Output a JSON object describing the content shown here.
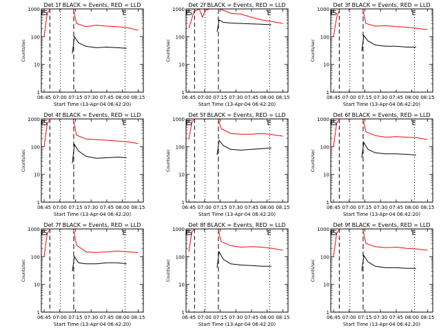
{
  "chart_data": [
    {
      "type": "line",
      "title": "Det 1f BLACK = Events, RED = LLD",
      "xlabel": "Start Time (13-Apr-04 06:42:20)",
      "ylabel": "Counts/sec",
      "y_scale": "log",
      "ylim": [
        1,
        1000
      ],
      "yticks": [
        "1",
        "10",
        "100",
        "1000"
      ],
      "xticks": [
        "06:45",
        "07:00",
        "07:15",
        "07:30",
        "07:45",
        "08:00",
        "08:15"
      ],
      "markers": [
        "E",
        "S",
        "E"
      ],
      "series": [
        {
          "name": "Events",
          "color": "#000000",
          "x": [
            "07:12",
            "07:14",
            "07:18",
            "07:25",
            "07:35",
            "07:45",
            "07:55",
            "08:04"
          ],
          "y": [
            25,
            100,
            60,
            45,
            40,
            42,
            40,
            38
          ]
        },
        {
          "name": "LLD",
          "color": "#ff0000",
          "x": [
            "06:45",
            "06:48",
            "06:51",
            "07:10",
            "07:13",
            "07:16",
            "07:25",
            "07:35",
            "07:45",
            "07:55",
            "08:05",
            "08:15"
          ],
          "y": [
            100,
            700,
            1000,
            1000,
            1000,
            300,
            230,
            260,
            240,
            230,
            210,
            170
          ]
        }
      ]
    },
    {
      "type": "line",
      "title": "Det 2f BLACK = Events, RED = LLD",
      "xlabel": "Start Time (13-Apr-04 06:42:20)",
      "ylabel": "Counts/sec",
      "y_scale": "log",
      "ylim": [
        1,
        1000
      ],
      "yticks": [
        "1",
        "10",
        "100",
        "1000"
      ],
      "xticks": [
        "06:45",
        "07:00",
        "07:15",
        "07:30",
        "07:45",
        "08:00",
        "08:15"
      ],
      "markers": [
        "E",
        "S",
        "E"
      ],
      "series": [
        {
          "name": "Events",
          "color": "#000000",
          "x": [
            "07:12",
            "07:14",
            "07:18",
            "07:25",
            "07:35",
            "07:45",
            "07:55",
            "08:04"
          ],
          "y": [
            150,
            400,
            330,
            310,
            300,
            290,
            280,
            270
          ]
        },
        {
          "name": "LLD",
          "color": "#ff0000",
          "x": [
            "06:45",
            "06:50",
            "06:55",
            "06:58",
            "07:01",
            "07:05",
            "07:10",
            "07:15",
            "07:25",
            "07:35",
            "07:45",
            "07:55",
            "08:05",
            "08:15"
          ],
          "y": [
            200,
            800,
            1000,
            500,
            900,
            1000,
            1000,
            1000,
            700,
            650,
            500,
            400,
            350,
            300
          ]
        }
      ]
    },
    {
      "type": "line",
      "title": "Det 3f BLACK = Events, RED = LLD",
      "xlabel": "Start Time (13-Apr-04 06:42:20)",
      "ylabel": "Counts/sec",
      "y_scale": "log",
      "ylim": [
        1,
        1000
      ],
      "yticks": [
        "1",
        "10",
        "100",
        "1000"
      ],
      "xticks": [
        "06:45",
        "07:00",
        "07:15",
        "07:30",
        "07:45",
        "08:00",
        "08:15"
      ],
      "markers": [
        "E",
        "S",
        "E"
      ],
      "series": [
        {
          "name": "Events",
          "color": "#000000",
          "x": [
            "07:12",
            "07:14",
            "07:18",
            "07:25",
            "07:35",
            "07:45",
            "07:55",
            "08:04"
          ],
          "y": [
            30,
            110,
            70,
            50,
            45,
            45,
            42,
            42
          ]
        },
        {
          "name": "LLD",
          "color": "#ff0000",
          "x": [
            "06:45",
            "06:48",
            "06:51",
            "07:10",
            "07:13",
            "07:16",
            "07:25",
            "07:35",
            "07:45",
            "07:55",
            "08:05",
            "08:15"
          ],
          "y": [
            100,
            500,
            1000,
            1000,
            1000,
            300,
            240,
            250,
            230,
            220,
            200,
            180
          ]
        }
      ]
    },
    {
      "type": "line",
      "title": "Det 4f BLACK = Events, RED = LLD",
      "xlabel": "Start Time (13-Apr-04 06:42:20)",
      "ylabel": "Counts/sec",
      "y_scale": "log",
      "ylim": [
        1,
        1000
      ],
      "yticks": [
        "1",
        "10",
        "100",
        "1000"
      ],
      "xticks": [
        "06:45",
        "07:00",
        "07:15",
        "07:30",
        "07:45",
        "08:00",
        "08:15"
      ],
      "markers": [
        "E",
        "S",
        "E"
      ],
      "series": [
        {
          "name": "Events",
          "color": "#000000",
          "x": [
            "07:12",
            "07:14",
            "07:18",
            "07:25",
            "07:35",
            "07:45",
            "07:55",
            "08:04"
          ],
          "y": [
            25,
            120,
            70,
            45,
            38,
            40,
            42,
            40
          ]
        },
        {
          "name": "LLD",
          "color": "#ff0000",
          "x": [
            "06:45",
            "06:48",
            "06:51",
            "07:10",
            "07:13",
            "07:16",
            "07:25",
            "07:35",
            "07:45",
            "07:55",
            "08:05",
            "08:15"
          ],
          "y": [
            100,
            700,
            1000,
            1000,
            1000,
            260,
            190,
            180,
            170,
            160,
            150,
            130
          ]
        }
      ]
    },
    {
      "type": "line",
      "title": "Det 5f BLACK = Events, RED = LLD",
      "xlabel": "Start Time (13-Apr-04 06:42:20)",
      "ylabel": "Counts/sec",
      "y_scale": "log",
      "ylim": [
        1,
        1000
      ],
      "yticks": [
        "1",
        "10",
        "100",
        "1000"
      ],
      "xticks": [
        "06:45",
        "07:00",
        "07:15",
        "07:30",
        "07:45",
        "08:00",
        "08:15"
      ],
      "markers": [
        "E",
        "S",
        "E"
      ],
      "series": [
        {
          "name": "Events",
          "color": "#000000",
          "x": [
            "07:12",
            "07:14",
            "07:18",
            "07:25",
            "07:35",
            "07:45",
            "07:55",
            "08:04"
          ],
          "y": [
            50,
            170,
            110,
            80,
            75,
            80,
            85,
            90
          ]
        },
        {
          "name": "LLD",
          "color": "#ff0000",
          "x": [
            "06:45",
            "06:48",
            "06:51",
            "07:10",
            "07:13",
            "07:16",
            "07:25",
            "07:35",
            "07:45",
            "07:55",
            "08:05",
            "08:15"
          ],
          "y": [
            180,
            800,
            1000,
            1000,
            1000,
            450,
            300,
            280,
            280,
            300,
            270,
            240
          ]
        }
      ]
    },
    {
      "type": "line",
      "title": "Det 6f BLACK = Events, RED = LLD",
      "xlabel": "Start Time (13-Apr-04 06:42:20)",
      "ylabel": "Counts/sec",
      "y_scale": "log",
      "ylim": [
        1,
        1000
      ],
      "yticks": [
        "1",
        "10",
        "100",
        "1000"
      ],
      "xticks": [
        "06:45",
        "07:00",
        "07:15",
        "07:30",
        "07:45",
        "08:00",
        "08:15"
      ],
      "markers": [
        "E",
        "S",
        "E"
      ],
      "series": [
        {
          "name": "Events",
          "color": "#000000",
          "x": [
            "07:12",
            "07:14",
            "07:18",
            "07:25",
            "07:35",
            "07:45",
            "07:55",
            "08:04"
          ],
          "y": [
            40,
            140,
            80,
            60,
            55,
            55,
            53,
            50
          ]
        },
        {
          "name": "LLD",
          "color": "#ff0000",
          "x": [
            "06:45",
            "06:48",
            "06:51",
            "07:10",
            "07:13",
            "07:16",
            "07:25",
            "07:35",
            "07:45",
            "07:55",
            "08:05",
            "08:15"
          ],
          "y": [
            100,
            700,
            1000,
            1000,
            1000,
            350,
            250,
            220,
            230,
            220,
            210,
            180
          ]
        }
      ]
    },
    {
      "type": "line",
      "title": "Det 7f BLACK = Events, RED = LLD",
      "xlabel": "Start Time (13-Apr-04 06:42:20)",
      "ylabel": "Counts/sec",
      "y_scale": "log",
      "ylim": [
        1,
        1000
      ],
      "yticks": [
        "1",
        "10",
        "100",
        "1000"
      ],
      "xticks": [
        "06:45",
        "07:00",
        "07:15",
        "07:30",
        "07:45",
        "08:00",
        "08:15"
      ],
      "markers": [
        "E",
        "S",
        "E"
      ],
      "series": [
        {
          "name": "Events",
          "color": "#000000",
          "x": [
            "07:12",
            "07:14",
            "07:18",
            "07:25",
            "07:35",
            "07:45",
            "07:55",
            "08:04"
          ],
          "y": [
            30,
            100,
            60,
            55,
            55,
            60,
            60,
            55
          ]
        },
        {
          "name": "LLD",
          "color": "#ff0000",
          "x": [
            "06:45",
            "06:48",
            "06:51",
            "07:10",
            "07:13",
            "07:16",
            "07:25",
            "07:35",
            "07:45",
            "07:55",
            "08:05",
            "08:15"
          ],
          "y": [
            100,
            700,
            1000,
            1000,
            1000,
            260,
            150,
            140,
            150,
            160,
            150,
            140
          ]
        }
      ]
    },
    {
      "type": "line",
      "title": "Det 8f BLACK = Events, RED = LLD",
      "xlabel": "Start Time (13-Apr-04 06:42:20)",
      "ylabel": "Counts/sec",
      "y_scale": "log",
      "ylim": [
        1,
        1000
      ],
      "yticks": [
        "1",
        "10",
        "100",
        "1000"
      ],
      "xticks": [
        "06:45",
        "07:00",
        "07:15",
        "07:30",
        "07:45",
        "08:00",
        "08:15"
      ],
      "markers": [
        "E",
        "S",
        "E"
      ],
      "series": [
        {
          "name": "Events",
          "color": "#000000",
          "x": [
            "07:12",
            "07:14",
            "07:18",
            "07:25",
            "07:35",
            "07:45",
            "07:55",
            "08:04"
          ],
          "y": [
            40,
            150,
            80,
            55,
            50,
            48,
            45,
            45
          ]
        },
        {
          "name": "LLD",
          "color": "#ff0000",
          "x": [
            "06:45",
            "06:48",
            "06:51",
            "07:10",
            "07:13",
            "07:16",
            "07:25",
            "07:35",
            "07:45",
            "07:55",
            "08:05",
            "08:15"
          ],
          "y": [
            150,
            800,
            1000,
            1000,
            1000,
            350,
            250,
            220,
            230,
            220,
            200,
            170
          ]
        }
      ]
    },
    {
      "type": "line",
      "title": "Det 9f BLACK = Events, RED = LLD",
      "xlabel": "Start Time (13-Apr-04 06:42:20)",
      "ylabel": "Counts/sec",
      "y_scale": "log",
      "ylim": [
        1,
        1000
      ],
      "yticks": [
        "1",
        "10",
        "100",
        "1000"
      ],
      "xticks": [
        "06:45",
        "07:00",
        "07:15",
        "07:30",
        "07:45",
        "08:00",
        "08:15"
      ],
      "markers": [
        "E",
        "S",
        "E"
      ],
      "series": [
        {
          "name": "Events",
          "color": "#000000",
          "x": [
            "07:12",
            "07:14",
            "07:18",
            "07:25",
            "07:35",
            "07:45",
            "07:55",
            "08:04"
          ],
          "y": [
            30,
            110,
            65,
            45,
            40,
            40,
            38,
            38
          ]
        },
        {
          "name": "LLD",
          "color": "#ff0000",
          "x": [
            "06:45",
            "06:48",
            "06:51",
            "07:10",
            "07:13",
            "07:16",
            "07:25",
            "07:35",
            "07:45",
            "07:55",
            "08:05",
            "08:15"
          ],
          "y": [
            100,
            700,
            1000,
            1000,
            1000,
            300,
            230,
            210,
            220,
            200,
            190,
            170
          ]
        }
      ]
    }
  ]
}
